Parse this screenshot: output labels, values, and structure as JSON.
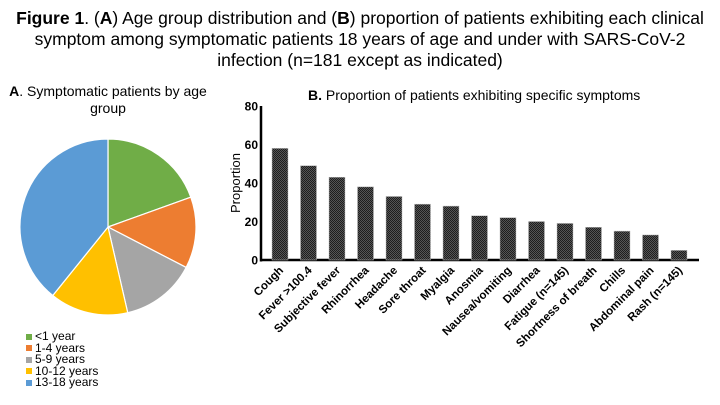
{
  "caption": {
    "figure_label": "Figure 1",
    "part_a": "A",
    "part_b": "B",
    "text_1": ". (",
    "text_2": ") Age group distribution and (",
    "text_3": ") proportion of patients exhibiting each clinical symptom among symptomatic patients 18 years of age and under with SARS-CoV-2 infection (n=181 except as indicated)"
  },
  "chart_data": [
    {
      "type": "pie",
      "title_bold": "A",
      "title": ". Symptomatic patients by age group",
      "categories": [
        "<1 year",
        "1-4 years",
        "5-9 years",
        "10-12 years",
        "13-18 years"
      ],
      "values": [
        19.5,
        13.1,
        13.8,
        14.4,
        39.2
      ],
      "unit": "percent (estimated)",
      "colors": [
        "#70ad47",
        "#ed7d31",
        "#a5a5a5",
        "#ffc000",
        "#5b9bd5"
      ],
      "legend": "bottom-left"
    },
    {
      "type": "bar",
      "title_bold": "B.",
      "title": " Proportion of patients exhibiting specific symptoms",
      "xlabel": "",
      "ylabel": "Proportion",
      "ylim": [
        0,
        80
      ],
      "yticks": [
        0,
        20,
        40,
        60,
        80
      ],
      "categories": [
        "Cough",
        "Fever >100.4",
        "Subjective fever",
        "Rhinorrhea",
        "Headache",
        "Sore throat",
        "Myalgia",
        "Anosmia",
        "Nausea/vomiting",
        "Diarrhea",
        "Fatigue (n=145)",
        "Shortness of breath",
        "Chills",
        "Abdominal pain",
        "Rash (n=145)"
      ],
      "values": [
        58,
        49,
        43,
        38,
        33,
        29,
        28,
        23,
        22,
        20,
        19,
        17,
        15,
        13,
        5
      ],
      "bar_color": "#3a3a3a",
      "grid": false
    }
  ]
}
